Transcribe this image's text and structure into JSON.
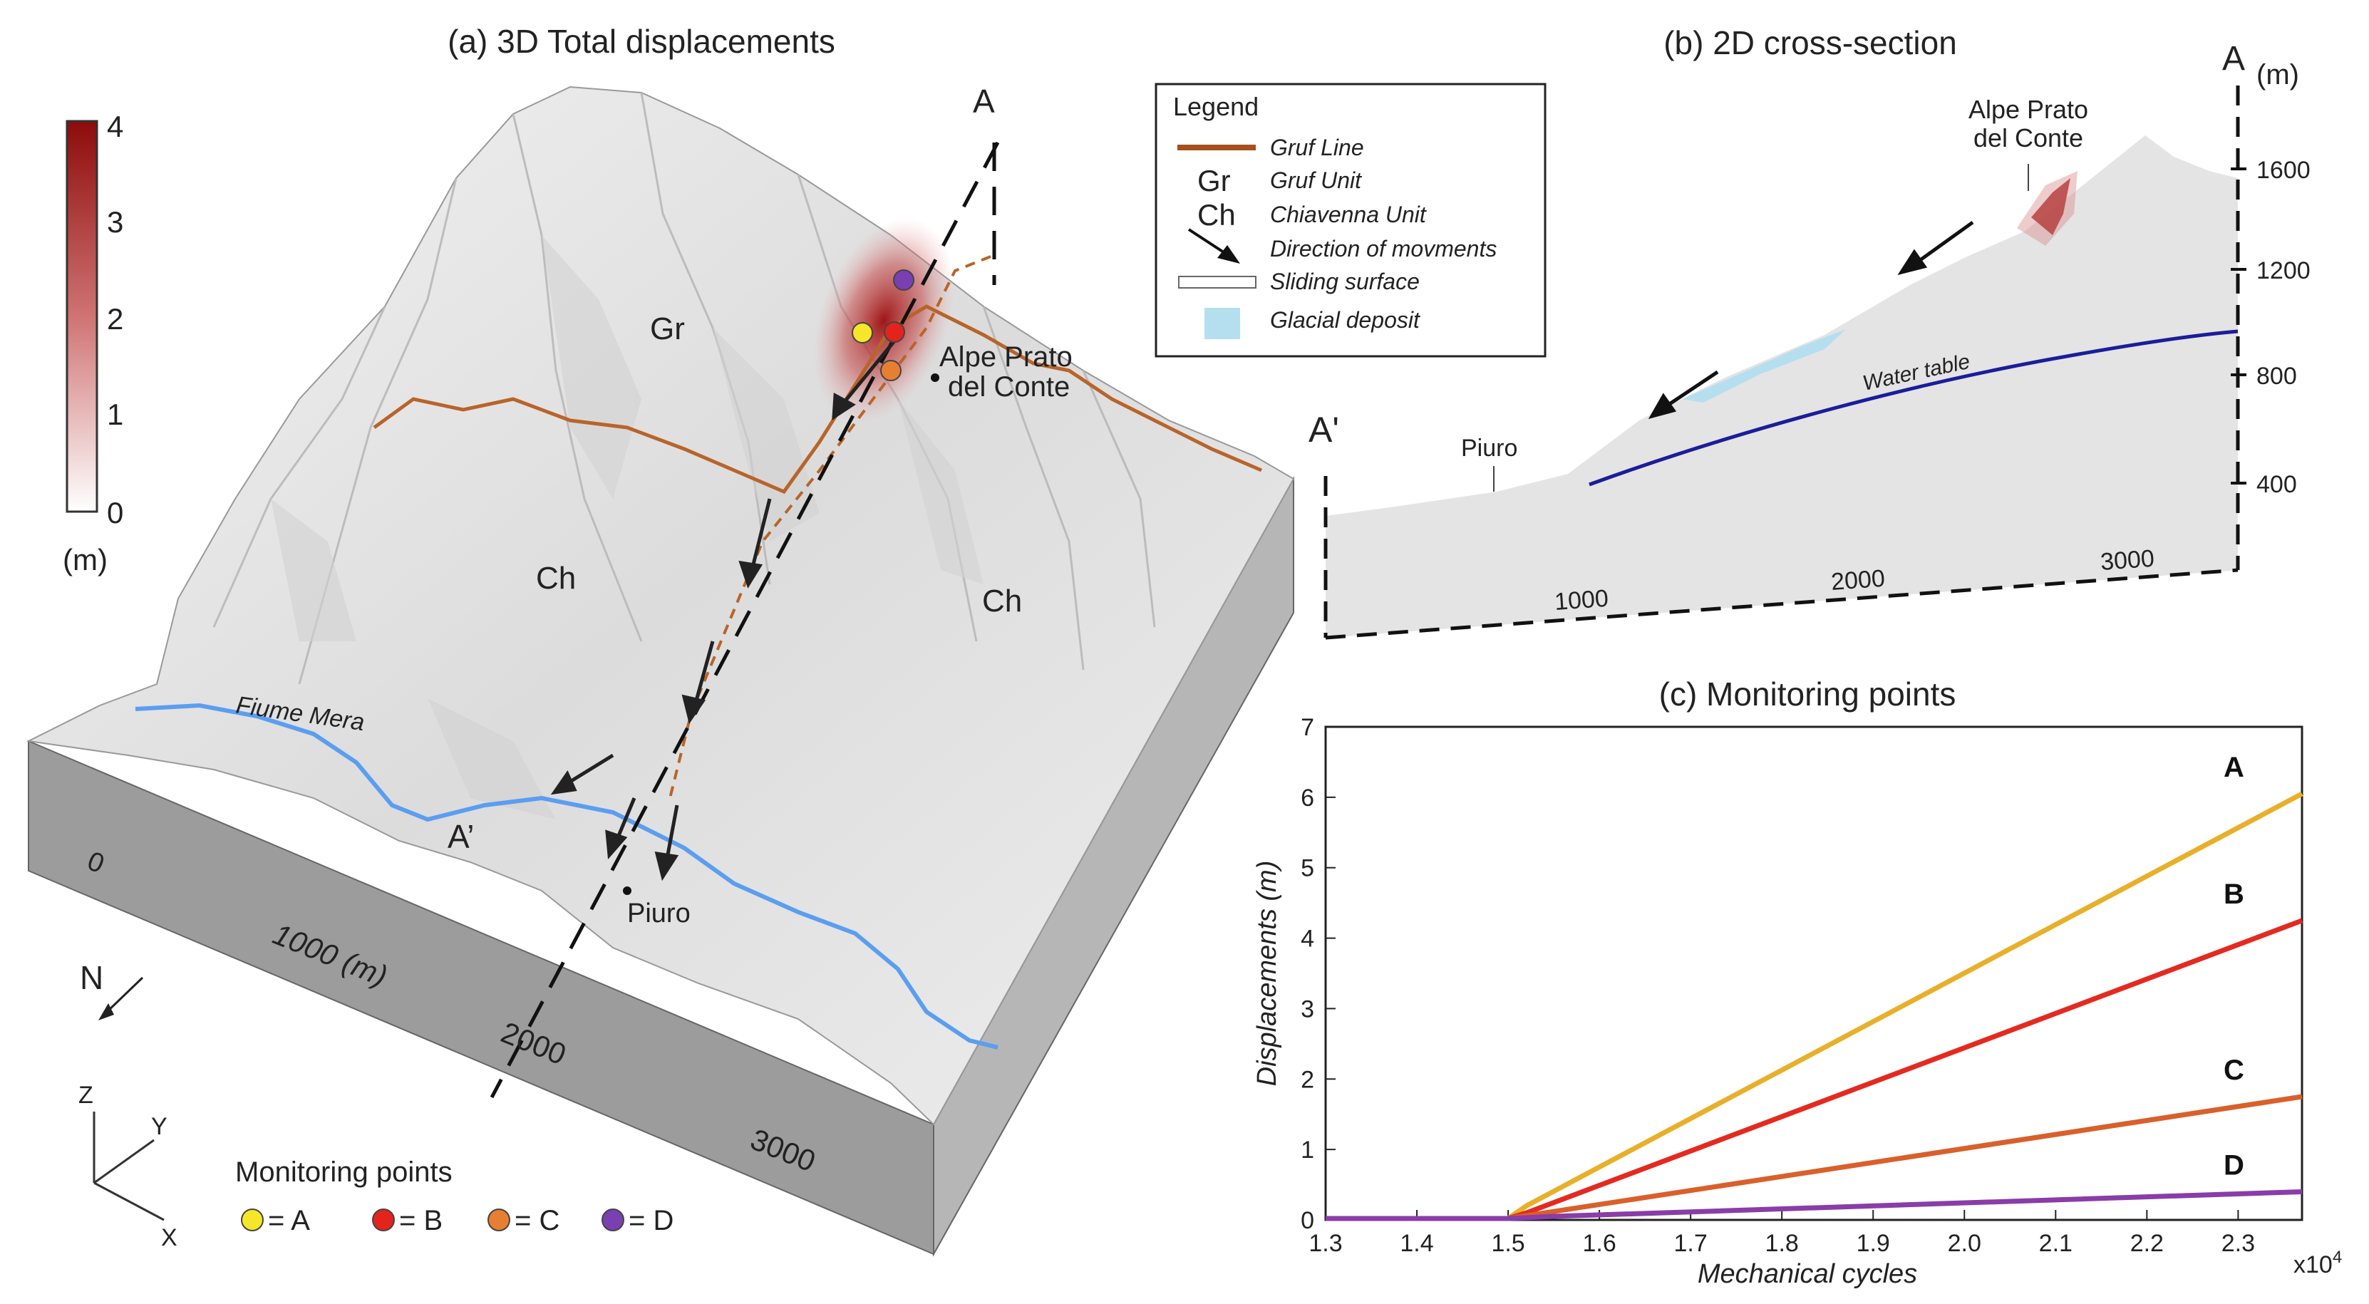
{
  "panel_a": {
    "title": "(a) 3D Total displacements",
    "colorbar": {
      "ticks": [
        "4",
        "3",
        "2",
        "1",
        "0"
      ],
      "unit": "(m)",
      "min": 0,
      "max": 4
    },
    "unit_labels": [
      "Gr",
      "Ch",
      "Ch"
    ],
    "place_alpe_line1": "Alpe Prato",
    "place_alpe_line2": "del Conte",
    "place_piuro": "Piuro",
    "river": "Fiume Mera",
    "section_a": "A",
    "section_a_prime": "A’",
    "scale_labels": [
      "0",
      "1000 (m)",
      "2000",
      "3000"
    ],
    "north": "N",
    "axes": {
      "z": "Z",
      "y": "Y",
      "x": "X"
    },
    "monitoring_title": "Monitoring points",
    "monitoring_legend": [
      {
        "label": "= A",
        "color": "#f5e62a"
      },
      {
        "label": "= B",
        "color": "#e4231c"
      },
      {
        "label": "= C",
        "color": "#e77f32"
      },
      {
        "label": "= D",
        "color": "#7a3fb0"
      }
    ]
  },
  "legend": {
    "title": "Legend",
    "items": [
      {
        "symbol": "line",
        "color": "#a6501c",
        "label": "Gruf Line"
      },
      {
        "symbol": "Gr",
        "label": "Gruf Unit"
      },
      {
        "symbol": "Ch",
        "label": "Chiavenna Unit"
      },
      {
        "symbol": "arrow",
        "label": "Direction of movments"
      },
      {
        "symbol": "box",
        "label": "Sliding surface"
      },
      {
        "symbol": "fill",
        "color": "#b5dfee",
        "label": "Glacial deposit"
      }
    ]
  },
  "panel_b": {
    "title": "(b) 2D cross-section",
    "a": "A",
    "a_prime": "A'",
    "unit": "(m)",
    "elev_ticks": [
      "1600",
      "1200",
      "800",
      "400"
    ],
    "dist_ticks": [
      "1000",
      "2000",
      "3000"
    ],
    "place_alpe_line1": "Alpe Prato",
    "place_alpe_line2": "del Conte",
    "place_piuro": "Piuro",
    "water_table": "Water table"
  },
  "panel_c": {
    "title": "(c) Monitoring points",
    "exponent": "x10",
    "exponent_power": "4"
  },
  "colors": {
    "terrain": "#e6e6e6",
    "block_side": "#a3a3a3",
    "gruf_line": "#b8642a",
    "river": "#5b9ef0",
    "displacement": "#a01010",
    "water_table": "#1c1d9a"
  },
  "chart_data": {
    "type": "line",
    "title": "(c) Monitoring points",
    "xlabel": "Mechanical cycles",
    "ylabel": "Displacements (m)",
    "xlim": [
      1.3,
      2.37
    ],
    "ylim": [
      0,
      7
    ],
    "xticks": [
      "1.3",
      "1.4",
      "1.5",
      "1.6",
      "1.7",
      "1.8",
      "1.9",
      "2.0",
      "2.1",
      "2.2",
      "2.3"
    ],
    "yticks": [
      "0",
      "1",
      "2",
      "3",
      "4",
      "5",
      "6",
      "7"
    ],
    "grid": false,
    "series": [
      {
        "name": "A",
        "color": "#e8b02a",
        "x": [
          1.3,
          1.5,
          1.52,
          2.37
        ],
        "y": [
          0.02,
          0.02,
          0.2,
          6.05
        ]
      },
      {
        "name": "B",
        "color": "#e42a20",
        "x": [
          1.3,
          1.5,
          1.52,
          2.37
        ],
        "y": [
          0.02,
          0.02,
          0.1,
          4.25
        ]
      },
      {
        "name": "C",
        "color": "#d9602b",
        "x": [
          1.3,
          1.5,
          1.53,
          2.37
        ],
        "y": [
          0.02,
          0.02,
          0.08,
          1.75
        ]
      },
      {
        "name": "D",
        "color": "#8a3ca8",
        "x": [
          1.3,
          1.5,
          1.55,
          2.37
        ],
        "y": [
          0.02,
          0.02,
          0.05,
          0.4
        ]
      }
    ]
  }
}
